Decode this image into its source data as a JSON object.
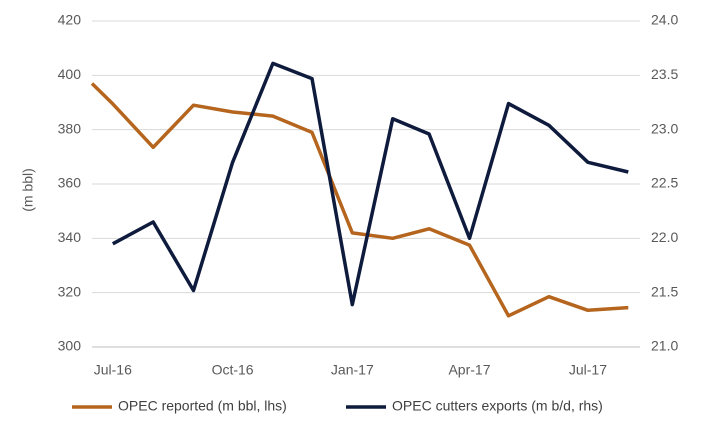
{
  "chart_data": {
    "type": "line",
    "x": [
      "2016-07",
      "2016-08",
      "2016-09",
      "2016-10",
      "2016-11",
      "2016-12",
      "2017-01",
      "2017-02",
      "2017-03",
      "2017-04",
      "2017-05",
      "2017-06",
      "2017-07",
      "2017-08"
    ],
    "x_tick_labels": [
      {
        "x": "2016-07",
        "label": "Jul-16"
      },
      {
        "x": "2016-10",
        "label": "Oct-16"
      },
      {
        "x": "2017-01",
        "label": "Jan-17"
      },
      {
        "x": "2017-04",
        "label": "Apr-17"
      },
      {
        "x": "2017-07",
        "label": "Jul-17"
      }
    ],
    "ylabel": "(m bbl)",
    "y_left": {
      "lim": [
        300,
        420
      ],
      "ticks": [
        "300",
        "320",
        "340",
        "360",
        "380",
        "400",
        "420"
      ]
    },
    "y_right": {
      "lim": [
        21.0,
        24.0
      ],
      "ticks": [
        "21.0",
        "21.5",
        "22.0",
        "22.5",
        "23.0",
        "23.5",
        "24.0"
      ]
    },
    "grid": "horizontal",
    "legend_position": "bottom",
    "series": [
      {
        "name": "OPEC reported (m bbl, lhs)",
        "axis": "left",
        "color": "#B5651D",
        "points": [
          [
            "2016-06-15",
            397
          ],
          [
            "2016-07",
            389.5
          ],
          [
            "2016-08",
            373.5
          ],
          [
            "2016-09",
            389
          ],
          [
            "2016-10",
            386.5
          ],
          [
            "2016-11",
            385
          ],
          [
            "2016-12",
            379
          ],
          [
            "2017-01",
            342
          ],
          [
            "2017-02",
            340
          ],
          [
            "2017-03",
            343.5
          ],
          [
            "2017-04",
            337.5
          ],
          [
            "2017-05",
            311.5
          ],
          [
            "2017-06",
            318.5
          ],
          [
            "2017-07",
            313.5
          ],
          [
            "2017-08",
            314.5
          ]
        ]
      },
      {
        "name": "OPEC cutters exports (m b/d, rhs)",
        "axis": "right",
        "color": "#0F1B3D",
        "points": [
          [
            "2016-07",
            21.95
          ],
          [
            "2016-08",
            22.15
          ],
          [
            "2016-09",
            21.52
          ],
          [
            "2016-10",
            22.7
          ],
          [
            "2016-11",
            23.61
          ],
          [
            "2016-12",
            23.47
          ],
          [
            "2017-01",
            21.39
          ],
          [
            "2017-02",
            23.1
          ],
          [
            "2017-03",
            22.96
          ],
          [
            "2017-04",
            22.0
          ],
          [
            "2017-05",
            23.24
          ],
          [
            "2017-06",
            23.04
          ],
          [
            "2017-07",
            22.7
          ],
          [
            "2017-08",
            22.61
          ]
        ]
      }
    ]
  }
}
